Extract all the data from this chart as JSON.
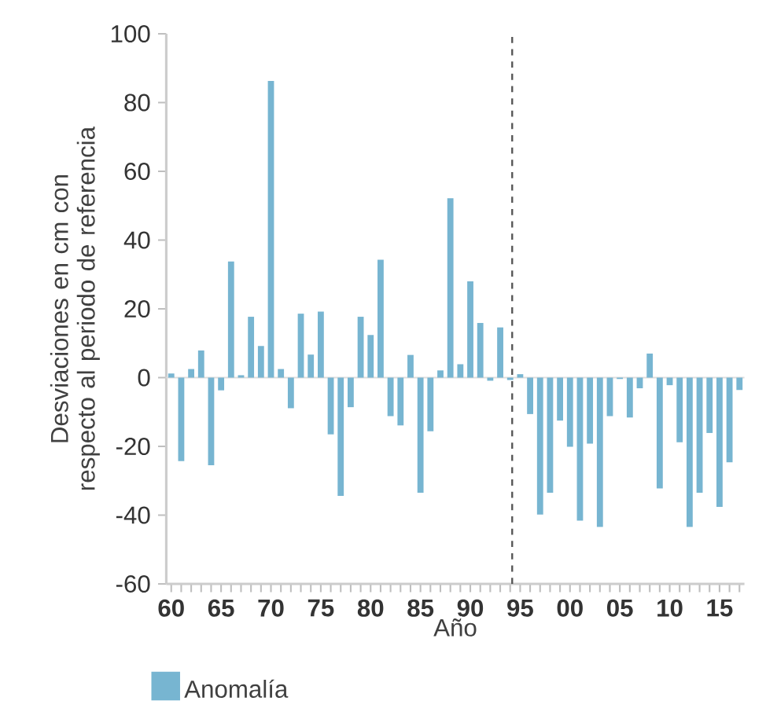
{
  "chart_data": {
    "type": "bar",
    "xlabel": "Año",
    "ylabel": "Desviaciones en cm con respecto al periodo de referencia",
    "x": [
      1960,
      1961,
      1962,
      1963,
      1964,
      1965,
      1966,
      1967,
      1968,
      1969,
      1970,
      1971,
      1972,
      1973,
      1974,
      1975,
      1976,
      1977,
      1978,
      1979,
      1980,
      1981,
      1982,
      1983,
      1984,
      1985,
      1986,
      1987,
      1988,
      1989,
      1990,
      1991,
      1992,
      1993,
      1994,
      1995,
      1996,
      1997,
      1998,
      1999,
      2000,
      2001,
      2002,
      2003,
      2004,
      2005,
      2006,
      2007,
      2008,
      2009,
      2010,
      2011,
      2012,
      2013,
      2014,
      2015,
      2016,
      2017
    ],
    "series": [
      {
        "name": "Anomalía",
        "color": "#77b5d1",
        "values": [
          1.2,
          -24.3,
          2.5,
          7.9,
          -25.5,
          -3.7,
          33.8,
          0.7,
          17.7,
          9.2,
          86.3,
          2.5,
          -8.9,
          18.6,
          6.7,
          19.2,
          -16.5,
          -34.4,
          -8.6,
          17.7,
          12.4,
          34.3,
          -11.2,
          -13.9,
          6.6,
          -33.5,
          -15.6,
          2.1,
          52.2,
          3.9,
          28.0,
          15.9,
          -0.9,
          14.6,
          -0.7,
          1.0,
          -10.6,
          -39.8,
          -33.5,
          -12.5,
          -20.1,
          -41.6,
          -19.2,
          -43.4,
          -11.2,
          -0.4,
          -11.6,
          -3.1,
          7.0,
          -32.2,
          -2.2,
          -18.8,
          -43.4,
          -33.5,
          -16.1,
          -37.6,
          -24.6,
          -3.6
        ]
      }
    ],
    "xlim": [
      1959.5,
      2017.5
    ],
    "ylim": [
      -60,
      100
    ],
    "yticks": [
      -60,
      -40,
      -20,
      0,
      20,
      40,
      60,
      80,
      100
    ],
    "xticks": [
      {
        "value": 1960,
        "label": "60"
      },
      {
        "value": 1961,
        "label": null
      },
      {
        "value": 1962,
        "label": null
      },
      {
        "value": 1963,
        "label": null
      },
      {
        "value": 1964,
        "label": null
      },
      {
        "value": 1965,
        "label": "65"
      },
      {
        "value": 1966,
        "label": null
      },
      {
        "value": 1967,
        "label": null
      },
      {
        "value": 1968,
        "label": null
      },
      {
        "value": 1969,
        "label": null
      },
      {
        "value": 1970,
        "label": "70"
      },
      {
        "value": 1971,
        "label": null
      },
      {
        "value": 1972,
        "label": null
      },
      {
        "value": 1973,
        "label": null
      },
      {
        "value": 1974,
        "label": null
      },
      {
        "value": 1975,
        "label": "75"
      },
      {
        "value": 1976,
        "label": null
      },
      {
        "value": 1977,
        "label": null
      },
      {
        "value": 1978,
        "label": null
      },
      {
        "value": 1979,
        "label": null
      },
      {
        "value": 1980,
        "label": "80"
      },
      {
        "value": 1981,
        "label": null
      },
      {
        "value": 1982,
        "label": null
      },
      {
        "value": 1983,
        "label": null
      },
      {
        "value": 1984,
        "label": null
      },
      {
        "value": 1985,
        "label": "85"
      },
      {
        "value": 1986,
        "label": null
      },
      {
        "value": 1987,
        "label": null
      },
      {
        "value": 1988,
        "label": null
      },
      {
        "value": 1989,
        "label": null
      },
      {
        "value": 1990,
        "label": "90"
      },
      {
        "value": 1991,
        "label": null
      },
      {
        "value": 1992,
        "label": null
      },
      {
        "value": 1993,
        "label": null
      },
      {
        "value": 1994,
        "label": null
      },
      {
        "value": 1995,
        "label": "95"
      },
      {
        "value": 1996,
        "label": null
      },
      {
        "value": 1997,
        "label": null
      },
      {
        "value": 1998,
        "label": null
      },
      {
        "value": 1999,
        "label": null
      },
      {
        "value": 2000,
        "label": "00"
      },
      {
        "value": 2001,
        "label": null
      },
      {
        "value": 2002,
        "label": null
      },
      {
        "value": 2003,
        "label": null
      },
      {
        "value": 2004,
        "label": null
      },
      {
        "value": 2005,
        "label": "05"
      },
      {
        "value": 2006,
        "label": null
      },
      {
        "value": 2007,
        "label": null
      },
      {
        "value": 2008,
        "label": null
      },
      {
        "value": 2009,
        "label": null
      },
      {
        "value": 2010,
        "label": "10"
      },
      {
        "value": 2011,
        "label": null
      },
      {
        "value": 2012,
        "label": null
      },
      {
        "value": 2013,
        "label": null
      },
      {
        "value": 2014,
        "label": null
      },
      {
        "value": 2015,
        "label": "15"
      },
      {
        "value": 2016,
        "label": null
      },
      {
        "value": 2017,
        "label": null
      }
    ],
    "ref_lines": [
      {
        "axis": "x",
        "value": 1994.2,
        "color": "#555555",
        "line_style": "dashed"
      },
      {
        "axis": "y",
        "value": 0,
        "color": "#dddddd",
        "line_style": "solid"
      }
    ],
    "legend": "bottom left",
    "grid": false
  }
}
